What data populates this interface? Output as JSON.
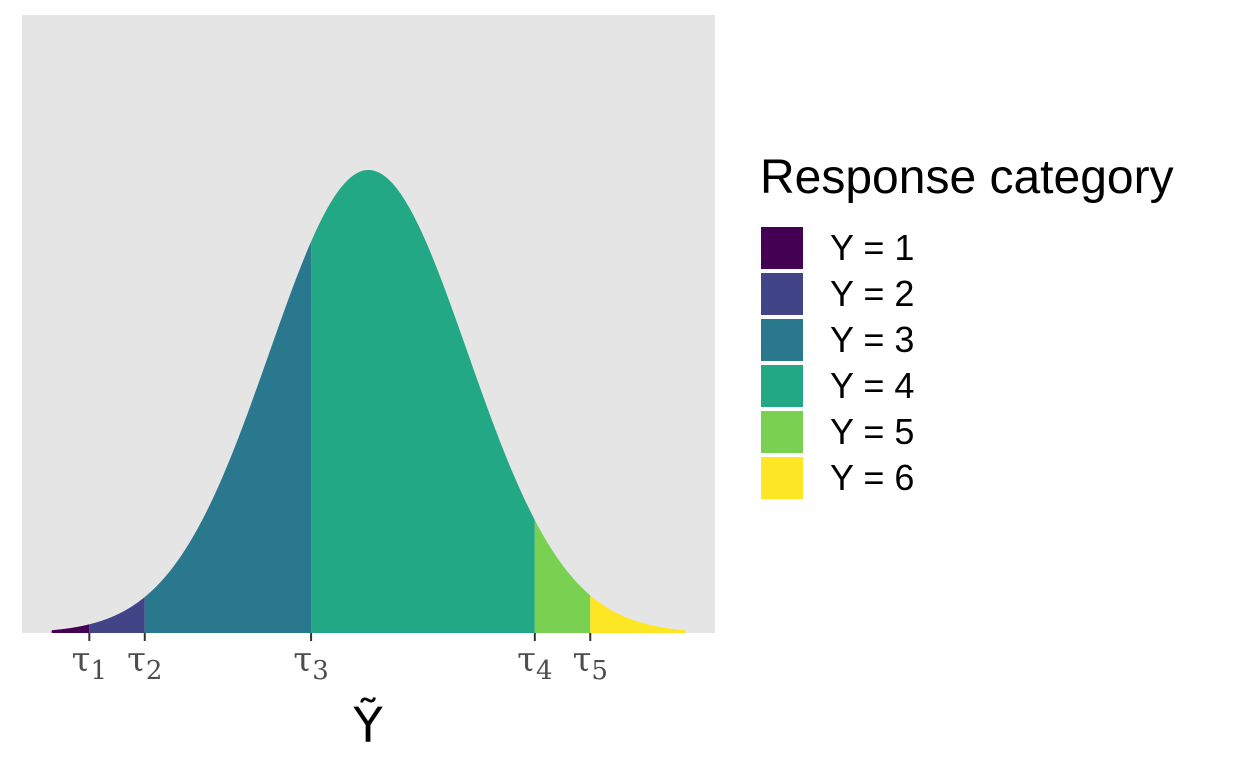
{
  "chart_data": {
    "type": "area",
    "distribution": "normal",
    "mean": 0,
    "sd": 1,
    "xlim": [
      -3.5,
      3.5
    ],
    "xlabel": "Ỹ",
    "thresholds": [
      {
        "label": "τ",
        "sub": "1",
        "value": -2.82
      },
      {
        "label": "τ",
        "sub": "2",
        "value": -2.26
      },
      {
        "label": "τ",
        "sub": "3",
        "value": -0.58
      },
      {
        "label": "τ",
        "sub": "4",
        "value": 1.68
      },
      {
        "label": "τ",
        "sub": "5",
        "value": 2.24
      }
    ],
    "categories": [
      "Y = 1",
      "Y = 2",
      "Y = 3",
      "Y = 4",
      "Y = 5",
      "Y = 6"
    ],
    "colors": [
      "#440154",
      "#414487",
      "#2A788E",
      "#22A884",
      "#7AD151",
      "#FDE725"
    ],
    "legend_title": "Response category",
    "legend_position": "right",
    "panel_background": "#e5e5e5",
    "grid": false
  }
}
